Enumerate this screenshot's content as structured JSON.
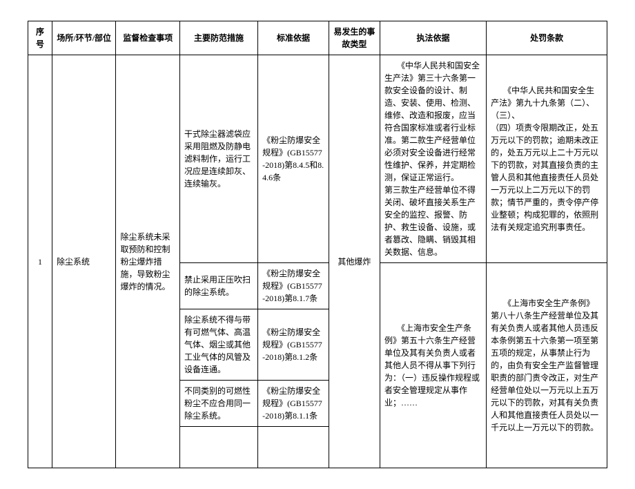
{
  "headers": {
    "seq": "序号",
    "place": "场所/环节/部位",
    "item": "监督检查事项",
    "measure": "主要防范措施",
    "std": "标准依据",
    "acc": "易发生的事故类型",
    "law": "执法依据",
    "pun": "处罚条款"
  },
  "row": {
    "seq": "1",
    "place": "除尘系统",
    "item": "除尘系统未采取预防和控制粉尘爆炸措施，导致粉尘爆炸的情况。",
    "acc": "其他爆炸",
    "measures": [
      "干式除尘器滤袋应采用阻燃及防静电滤料制作，运行工况应是连续卸灰、连续输灰。",
      "禁止采用正压吹扫的除尘系统。",
      "除尘系统不得与带有可燃气体、高温气体、烟尘或其他工业气体的风管及设备连通。",
      "不同类别的可燃性粉尘不应合用同一除尘系统。"
    ],
    "stds": [
      "《粉尘防爆安全规程》(GB15577-2018)第8.4.5和8.4.6条",
      "《粉尘防爆安全规程》(GB15577-2018)第8.1.7条",
      "《粉尘防爆安全规程》(GB15577-2018)第8.1.2条",
      "《粉尘防爆安全规程》(GB15577-2018)第8.1.1条"
    ],
    "laws": [
      "《中华人民共和国安全生产法》第三十六条第一款安全设备的设计、制造、安装、使用、检测、维修、改造和报废，应当符合国家标准或者行业标准。第二款生产经营单位必须对安全设备进行经常性维护、保养，并定期检测，保证正常运行。\n第三款生产经营单位不得关闭、破坏直接关系生产安全的监控、报警、防护、救生设备、设施，或者篡改、隐瞒、销毁其相关数据、信息。",
      "《上海市安全生产条例》第五十六条生产经营单位及其有关负责人或者其他人员不得从事下列行为：（一）违反操作规程或者安全管理规定从事作业；……"
    ],
    "puns": [
      "《中华人民共和国安全生产法》第九十九条第（二）、（三）、\n（四）项责令限期改正，处五万元以下的罚款；逾期未改正的，处五万元以上二十万元以下的罚款，对其直接负责的主管人员和其他直接责任人员处一万元以上二万元以下的罚款；情节严重的，责令停产停业整顿；构成犯罪的，依照刑法有关规定追究刑事责任。",
      "《上海市安全生产条例》第八十八条生产经营单位及其有关负责人或者其他人员违反本条例第五十六条第一项至第五项的规定，从事禁止行为的，由负有安全生产监督管理职责的部门责令改正，对生产经营单位处以一万元以上五万元以下的罚款，对其有关负责人和其他直接责任人员处以一千元以上一万元以下的罚款。"
    ]
  }
}
